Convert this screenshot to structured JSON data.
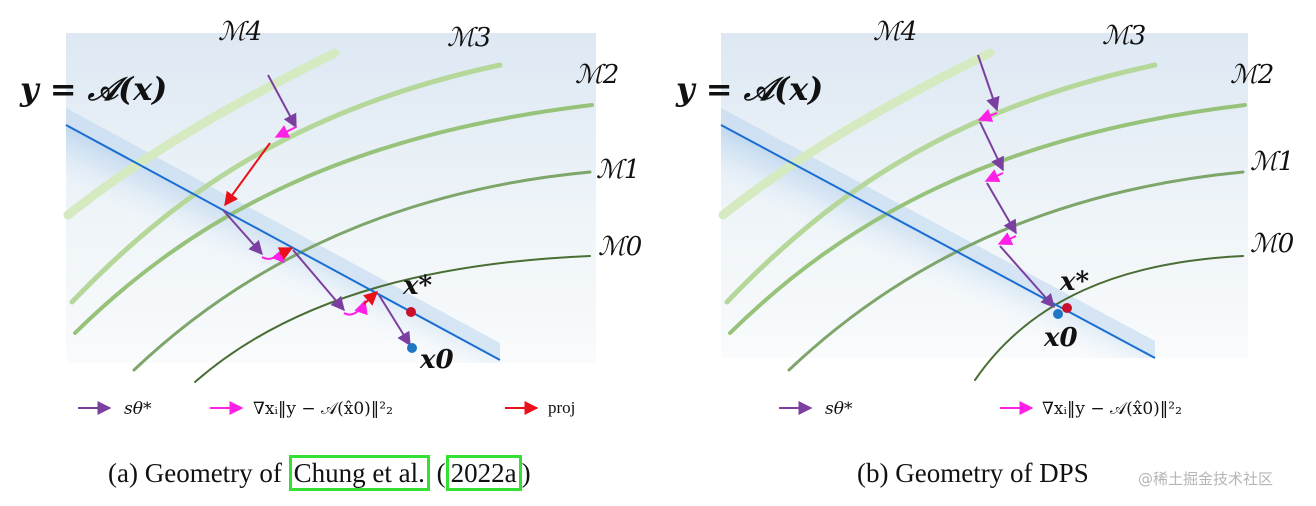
{
  "panel_a": {
    "equation": "y = 𝒜(x)",
    "manifolds": [
      "ℳ4",
      "ℳ3",
      "ℳ2",
      "ℳ1",
      "ℳ0"
    ],
    "x_star": "x*",
    "x0": "x0",
    "legend": {
      "score": "sθ*",
      "grad": "∇xᵢ‖y − 𝒜(x̂0)‖²₂",
      "proj": "proj"
    },
    "caption": {
      "prefix": "(a) Geometry of ",
      "cite_authors": "Chung et al.",
      "open_paren": " (",
      "cite_year": "2022a",
      "close_paren": ")"
    }
  },
  "panel_b": {
    "equation": "y = 𝒜(x)",
    "manifolds": [
      "ℳ4",
      "ℳ3",
      "ℳ2",
      "ℳ1",
      "ℳ0"
    ],
    "x_star": "x*",
    "x0": "x0",
    "legend": {
      "score": "sθ*",
      "grad": "∇xᵢ‖y − 𝒜(x̂0)‖²₂"
    },
    "caption": "(b) Geometry of DPS"
  },
  "colors": {
    "purple": "#7b3fa0",
    "magenta": "#ff1fe6",
    "red": "#e8101a",
    "blue_line": "#1a6ed1",
    "dot_red": "#c8102e",
    "dot_blue": "#1f77c4",
    "manifold_dark": "#4a6d34",
    "manifold_light": "#cfe7b6"
  },
  "watermark": "@稀土掘金技术社区"
}
